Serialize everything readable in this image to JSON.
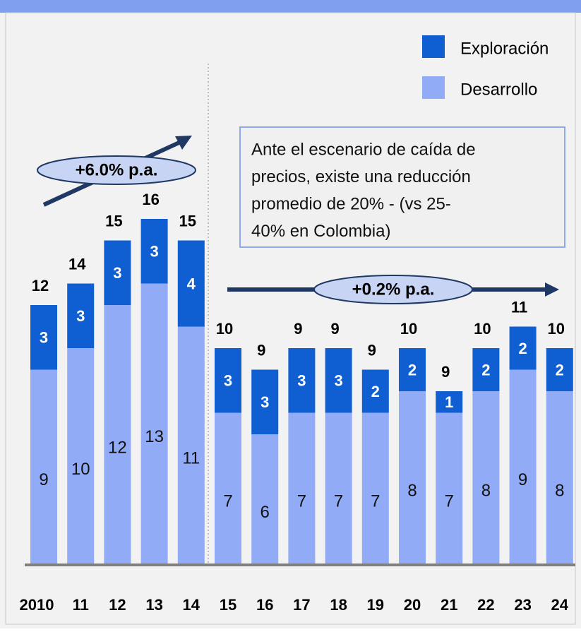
{
  "chart_data": {
    "type": "stacked_bar",
    "categories": [
      "2010",
      "11",
      "12",
      "13",
      "14",
      "15",
      "16",
      "17",
      "18",
      "19",
      "20",
      "21",
      "22",
      "23",
      "24"
    ],
    "series": [
      {
        "name": "Desarrollo",
        "color": "#92abf7",
        "values": [
          9,
          10,
          12,
          13,
          11,
          7,
          6,
          7,
          7,
          7,
          8,
          7,
          8,
          9,
          8
        ]
      },
      {
        "name": "Exploración",
        "color": "#0f5fd2",
        "values": [
          3,
          3,
          3,
          3,
          4,
          3,
          3,
          3,
          3,
          2,
          2,
          1,
          2,
          2,
          2
        ]
      }
    ],
    "totals": [
      12,
      14,
      15,
      16,
      15,
      10,
      9,
      9,
      9,
      9,
      10,
      9,
      10,
      11,
      10
    ],
    "annotations": {
      "growth_before": "+6.0% p.a.",
      "growth_after": "+0.2% p.a.",
      "note": [
        "Ante el escenario de caída de",
        "precios, existe una reducción",
        "promedio de 20% - (vs  25-",
        "40% en Colombia)"
      ]
    }
  }
}
